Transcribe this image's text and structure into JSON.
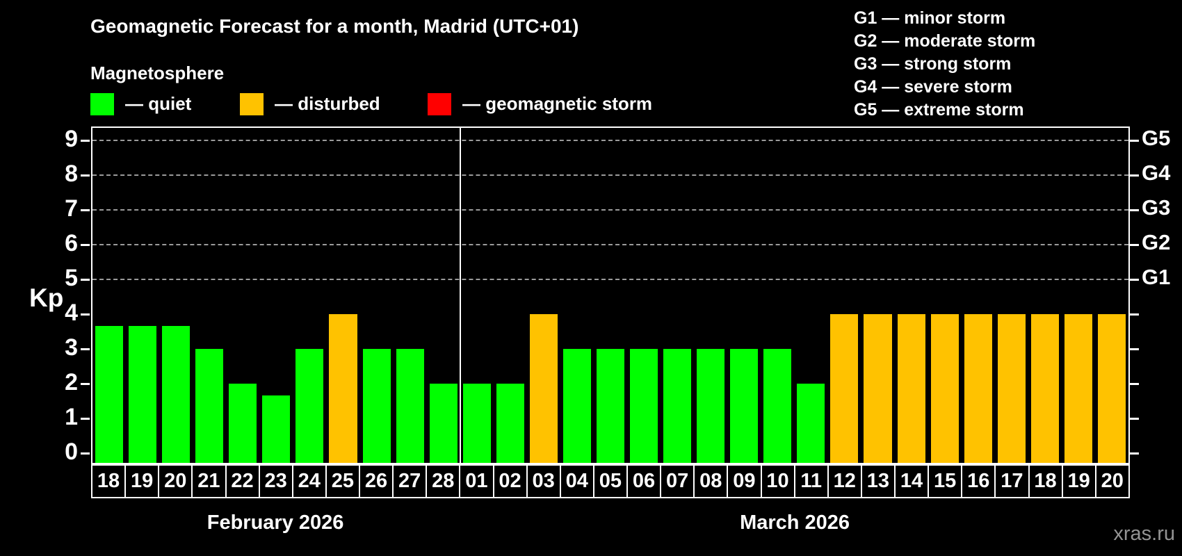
{
  "title": "Geomagnetic Forecast for a month, Madrid (UTC+01)",
  "subtitle": "Magnetosphere",
  "legend": {
    "items": [
      {
        "key": "quiet",
        "label": "— quiet",
        "color": "#00ff00"
      },
      {
        "key": "disturbed",
        "label": "— disturbed",
        "color": "#ffc200"
      },
      {
        "key": "storm",
        "label": "— geomagnetic storm",
        "color": "#ff0000"
      }
    ]
  },
  "g_scale": {
    "lines": [
      "G1 — minor storm",
      "G2 — moderate storm",
      "G3 — strong storm",
      "G4 — severe storm",
      "G5 — extreme storm"
    ]
  },
  "axis": {
    "kp_label": "Kp",
    "kp_ticks": [
      0,
      1,
      2,
      3,
      4,
      5,
      6,
      7,
      8,
      9
    ],
    "g_ticks": [
      {
        "kp": 5,
        "label": "G1"
      },
      {
        "kp": 6,
        "label": "G2"
      },
      {
        "kp": 7,
        "label": "G3"
      },
      {
        "kp": 8,
        "label": "G4"
      },
      {
        "kp": 9,
        "label": "G5"
      }
    ],
    "grid_levels": [
      5,
      6,
      7,
      8,
      9
    ]
  },
  "watermark": "xras.ru",
  "chart_data": {
    "type": "bar",
    "title": "Geomagnetic Forecast for a month, Madrid (UTC+01)",
    "xlabel": "",
    "ylabel": "Kp",
    "ylim": [
      0,
      9.5
    ],
    "grid": "dashed horizontal lines at Kp 5,6,7,8,9 (G1–G5)",
    "legend_position": "top-left",
    "months": [
      {
        "label": "February 2026",
        "days": 11
      },
      {
        "label": "March 2026",
        "days": 20
      }
    ],
    "categories": [
      "18",
      "19",
      "20",
      "21",
      "22",
      "23",
      "24",
      "25",
      "26",
      "27",
      "28",
      "01",
      "02",
      "03",
      "04",
      "05",
      "06",
      "07",
      "08",
      "09",
      "10",
      "11",
      "12",
      "13",
      "14",
      "15",
      "16",
      "17",
      "18",
      "19",
      "20"
    ],
    "series": [
      {
        "name": "Kp index forecast",
        "values": [
          3.67,
          3.67,
          3.67,
          3,
          2,
          1.67,
          3,
          4,
          3,
          3,
          2,
          2,
          2,
          4,
          3,
          3,
          3,
          3,
          3,
          3,
          3,
          2,
          4,
          4,
          4,
          4,
          4,
          4,
          4,
          4,
          4
        ]
      }
    ],
    "statuses": [
      "quiet",
      "quiet",
      "quiet",
      "quiet",
      "quiet",
      "quiet",
      "quiet",
      "disturbed",
      "quiet",
      "quiet",
      "quiet",
      "quiet",
      "quiet",
      "disturbed",
      "quiet",
      "quiet",
      "quiet",
      "quiet",
      "quiet",
      "quiet",
      "quiet",
      "quiet",
      "disturbed",
      "disturbed",
      "disturbed",
      "disturbed",
      "disturbed",
      "disturbed",
      "disturbed",
      "disturbed",
      "disturbed"
    ]
  }
}
